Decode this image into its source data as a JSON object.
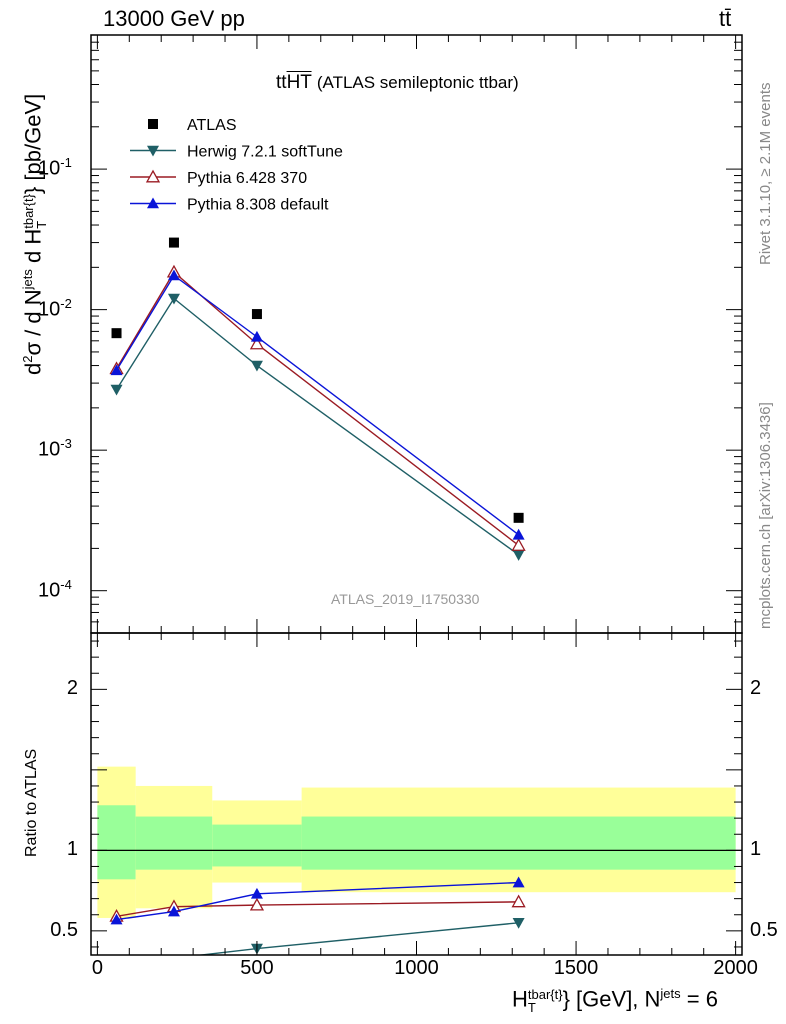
{
  "header": {
    "energy_label": "13000 GeV pp",
    "process_label": "tt̄"
  },
  "main_title": {
    "prefix": "tt",
    "overlined": "HT",
    "suffix": "(ATLAS semileptonic ttbar)"
  },
  "side_labels": {
    "rivet": "Rivet 3.1.10, ≥ 2.1M events",
    "source": "mcplots.cern.ch [arXiv:1306.3436]"
  },
  "analysis_id": "ATLAS_2019_I1750330",
  "upper_ylabel": {
    "part1": "d",
    "sup1": "2",
    "part2": "σ / d N",
    "sup2": "jets",
    "part3": " d H",
    "sup3": "tbar{t}",
    "sub3": "T",
    "part4": "} [pb/GeV]"
  },
  "lower_ylabel": "Ratio to ATLAS",
  "xlabel": {
    "part1": "H",
    "sup1": "tbar{t}",
    "sub1": "T",
    "part2": "} [GeV], N",
    "sup2": "jets",
    "part3": " = 6"
  },
  "colors": {
    "data": "#000000",
    "herwig": "#1f5f66",
    "pythia6": "#9b1b23",
    "pythia8": "#0a14d8",
    "band_inner": "#99ff99",
    "band_outer": "#ffff99"
  },
  "chart_data": {
    "type": "line",
    "x_unit": "GeV",
    "xlim": [
      -20,
      2020
    ],
    "x_ticks": [
      0,
      500,
      1000,
      1500,
      2000
    ],
    "upper": {
      "yscale": "log",
      "ylim": [
        5e-05,
        0.9
      ],
      "y_tick_labels": [
        {
          "base": "10",
          "exp": "-1",
          "value": 0.1
        },
        {
          "base": "10",
          "exp": "-2",
          "value": 0.01
        },
        {
          "base": "10",
          "exp": "-3",
          "value": 0.001
        },
        {
          "base": "10",
          "exp": "-4",
          "value": 0.0001
        }
      ],
      "legend_position": "top-left",
      "series": [
        {
          "name": "ATLAS",
          "marker": "square",
          "x": [
            60,
            240,
            500,
            1320
          ],
          "y": [
            0.0068,
            0.03,
            0.0093,
            0.00033
          ]
        },
        {
          "name": "Herwig 7.2.1 softTune",
          "marker": "triangle-down",
          "x": [
            60,
            240,
            500,
            1320
          ],
          "y": [
            0.0027,
            0.012,
            0.004,
            0.00018
          ]
        },
        {
          "name": "Pythia 6.428 370",
          "marker": "triangle-open",
          "x": [
            60,
            240,
            500,
            1320
          ],
          "y": [
            0.0038,
            0.0185,
            0.0057,
            0.00021
          ]
        },
        {
          "name": "Pythia 8.308 default",
          "marker": "triangle-up",
          "x": [
            60,
            240,
            500,
            1320
          ],
          "y": [
            0.0037,
            0.0175,
            0.0064,
            0.00025
          ]
        }
      ]
    },
    "lower": {
      "ylim": [
        0.35,
        2.35
      ],
      "y_ticks": [
        0.5,
        1,
        1.5,
        2
      ],
      "y_tick_labels": [
        "0.5",
        "1",
        "2"
      ],
      "reference_line": 1,
      "bands": [
        {
          "x": [
            0,
            120
          ],
          "inner": [
            0.82,
            1.28
          ],
          "outer": [
            0.58,
            1.52
          ]
        },
        {
          "x": [
            120,
            360
          ],
          "inner": [
            0.88,
            1.21
          ],
          "outer": [
            0.64,
            1.4
          ]
        },
        {
          "x": [
            360,
            640
          ],
          "inner": [
            0.9,
            1.16
          ],
          "outer": [
            0.8,
            1.31
          ]
        },
        {
          "x": [
            640,
            2000
          ],
          "inner": [
            0.88,
            1.21
          ],
          "outer": [
            0.74,
            1.39
          ]
        }
      ],
      "series": [
        {
          "name": "Herwig 7.2.1 softTune",
          "x": [
            60,
            240,
            500,
            1320
          ],
          "y": [
            0.3,
            0.33,
            0.39,
            0.55
          ]
        },
        {
          "name": "Pythia 6.428 370",
          "x": [
            60,
            240,
            500,
            1320
          ],
          "y": [
            0.59,
            0.65,
            0.66,
            0.68
          ]
        },
        {
          "name": "Pythia 8.308 default",
          "x": [
            60,
            240,
            500,
            1320
          ],
          "y": [
            0.57,
            0.62,
            0.73,
            0.8
          ]
        }
      ]
    }
  }
}
